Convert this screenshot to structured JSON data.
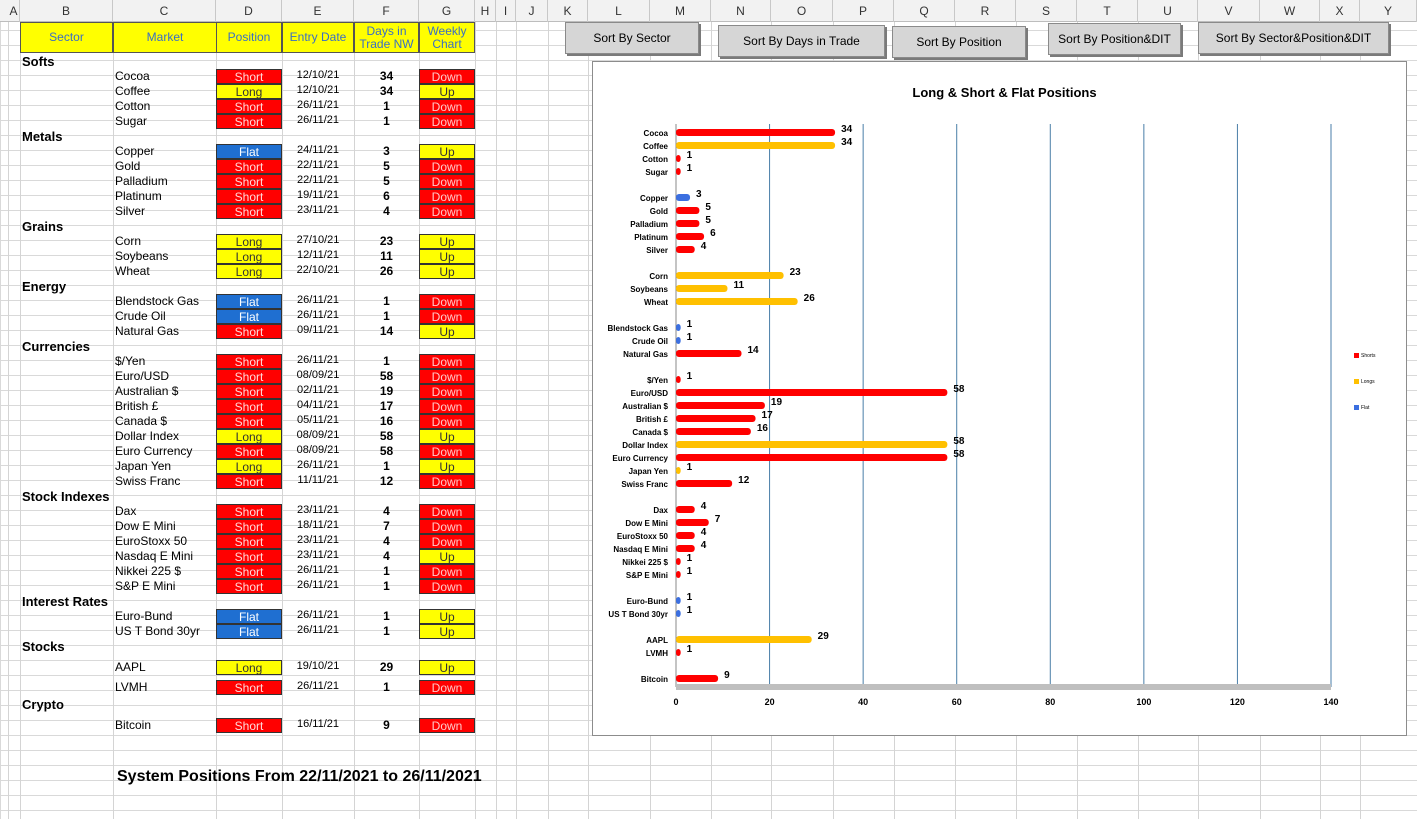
{
  "columns": [
    "A",
    "B",
    "C",
    "D",
    "E",
    "F",
    "G",
    "H",
    "I",
    "J",
    "K",
    "L",
    "M",
    "N",
    "O",
    "P",
    "Q",
    "R",
    "S",
    "T",
    "U",
    "V",
    "W",
    "X",
    "Y"
  ],
  "table_headers": {
    "sector": "Sector",
    "market": "Market",
    "position": "Position",
    "entry_date": "Entry Date",
    "days": "Days in Trade NW",
    "weekly": "Weekly Chart"
  },
  "groups": [
    {
      "sector": "Softs",
      "rows": [
        {
          "market": "Cocoa",
          "position": "Short",
          "date": "12/10/21",
          "days": "34",
          "weekly": "Down"
        },
        {
          "market": "Coffee",
          "position": "Long",
          "date": "12/10/21",
          "days": "34",
          "weekly": "Up"
        },
        {
          "market": "Cotton",
          "position": "Short",
          "date": "26/11/21",
          "days": "1",
          "weekly": "Down"
        },
        {
          "market": "Sugar",
          "position": "Short",
          "date": "26/11/21",
          "days": "1",
          "weekly": "Down"
        }
      ]
    },
    {
      "sector": "Metals",
      "rows": [
        {
          "market": "Copper",
          "position": "Flat",
          "date": "24/11/21",
          "days": "3",
          "weekly": "Up"
        },
        {
          "market": "Gold",
          "position": "Short",
          "date": "22/11/21",
          "days": "5",
          "weekly": "Down"
        },
        {
          "market": "Palladium",
          "position": "Short",
          "date": "22/11/21",
          "days": "5",
          "weekly": "Down"
        },
        {
          "market": "Platinum",
          "position": "Short",
          "date": "19/11/21",
          "days": "6",
          "weekly": "Down"
        },
        {
          "market": "Silver",
          "position": "Short",
          "date": "23/11/21",
          "days": "4",
          "weekly": "Down"
        }
      ]
    },
    {
      "sector": "Grains",
      "rows": [
        {
          "market": "Corn",
          "position": "Long",
          "date": "27/10/21",
          "days": "23",
          "weekly": "Up"
        },
        {
          "market": "Soybeans",
          "position": "Long",
          "date": "12/11/21",
          "days": "11",
          "weekly": "Up"
        },
        {
          "market": "Wheat",
          "position": "Long",
          "date": "22/10/21",
          "days": "26",
          "weekly": "Up"
        }
      ]
    },
    {
      "sector": "Energy",
      "rows": [
        {
          "market": "Blendstock Gas",
          "position": "Flat",
          "date": "26/11/21",
          "days": "1",
          "weekly": "Down"
        },
        {
          "market": "Crude Oil",
          "position": "Flat",
          "date": "26/11/21",
          "days": "1",
          "weekly": "Down"
        },
        {
          "market": "Natural Gas",
          "position": "Short",
          "date": "09/11/21",
          "days": "14",
          "weekly": "Up"
        }
      ]
    },
    {
      "sector": "Currencies",
      "rows": [
        {
          "market": "$/Yen",
          "position": "Short",
          "date": "26/11/21",
          "days": "1",
          "weekly": "Down"
        },
        {
          "market": "Euro/USD",
          "position": "Short",
          "date": "08/09/21",
          "days": "58",
          "weekly": "Down"
        },
        {
          "market": "Australian $",
          "position": "Short",
          "date": "02/11/21",
          "days": "19",
          "weekly": "Down"
        },
        {
          "market": "British £",
          "position": "Short",
          "date": "04/11/21",
          "days": "17",
          "weekly": "Down"
        },
        {
          "market": "Canada $",
          "position": "Short",
          "date": "05/11/21",
          "days": "16",
          "weekly": "Down"
        },
        {
          "market": "Dollar Index",
          "position": "Long",
          "date": "08/09/21",
          "days": "58",
          "weekly": "Up"
        },
        {
          "market": "Euro Currency",
          "position": "Short",
          "date": "08/09/21",
          "days": "58",
          "weekly": "Down"
        },
        {
          "market": "Japan Yen",
          "position": "Long",
          "date": "26/11/21",
          "days": "1",
          "weekly": "Up"
        },
        {
          "market": "Swiss Franc",
          "position": "Short",
          "date": "11/11/21",
          "days": "12",
          "weekly": "Down"
        }
      ]
    },
    {
      "sector": "Stock Indexes",
      "rows": [
        {
          "market": "Dax",
          "position": "Short",
          "date": "23/11/21",
          "days": "4",
          "weekly": "Down"
        },
        {
          "market": "Dow E Mini",
          "position": "Short",
          "date": "18/11/21",
          "days": "7",
          "weekly": "Down"
        },
        {
          "market": "EuroStoxx 50",
          "position": "Short",
          "date": "23/11/21",
          "days": "4",
          "weekly": "Down"
        },
        {
          "market": "Nasdaq E Mini",
          "position": "Short",
          "date": "23/11/21",
          "days": "4",
          "weekly": "Up"
        },
        {
          "market": "Nikkei 225 $",
          "position": "Short",
          "date": "26/11/21",
          "days": "1",
          "weekly": "Down"
        },
        {
          "market": "S&P E Mini",
          "position": "Short",
          "date": "26/11/21",
          "days": "1",
          "weekly": "Down"
        }
      ]
    },
    {
      "sector": "Interest Rates",
      "rows": [
        {
          "market": "Euro-Bund",
          "position": "Flat",
          "date": "26/11/21",
          "days": "1",
          "weekly": "Up"
        },
        {
          "market": "US T Bond 30yr",
          "position": "Flat",
          "date": "26/11/21",
          "days": "1",
          "weekly": "Up"
        }
      ]
    },
    {
      "sector": "Stocks",
      "rows": [
        {
          "market": "AAPL",
          "position": "Long",
          "date": "19/10/21",
          "days": "29",
          "weekly": "Up"
        },
        {
          "market": "LVMH",
          "position": "Short",
          "date": "26/11/21",
          "days": "1",
          "weekly": "Down"
        }
      ]
    },
    {
      "sector": "Crypto",
      "rows": [
        {
          "market": "Bitcoin",
          "position": "Short",
          "date": "16/11/21",
          "days": "9",
          "weekly": "Down"
        }
      ]
    }
  ],
  "footer": "System Positions From  22/11/2021  to 26/11/2021",
  "buttons": {
    "sort_sector": "Sort By Sector",
    "sort_days": "Sort By Days in Trade",
    "sort_position": "Sort By Position",
    "sort_position_dit": "Sort By Position&DIT",
    "sort_sector_position_dit": "Sort By Sector&Position&DIT"
  },
  "colors": {
    "short": "#ff0000",
    "long": "#ffc000",
    "flat": "#3b6fe0",
    "header_bg": "#ffff00",
    "header_text": "#3a6fc4",
    "flat_cell": "#1f6fd1"
  },
  "chart_data": {
    "type": "bar",
    "orientation": "horizontal",
    "title": "Long & Short & Flat Positions",
    "xlim": [
      0,
      140
    ],
    "xticks": [
      0,
      20,
      40,
      60,
      80,
      100,
      120,
      140
    ],
    "legend": [
      "Shorts",
      "Longs",
      "Flat"
    ],
    "legend_position": "right",
    "grid": "vertical",
    "groups": [
      [
        [
          "Cocoa",
          34,
          "Short"
        ],
        [
          "Coffee",
          34,
          "Long"
        ],
        [
          "Cotton",
          1,
          "Short"
        ],
        [
          "Sugar",
          1,
          "Short"
        ]
      ],
      [
        [
          "Copper",
          3,
          "Flat"
        ],
        [
          "Gold",
          5,
          "Short"
        ],
        [
          "Palladium",
          5,
          "Short"
        ],
        [
          "Platinum",
          6,
          "Short"
        ],
        [
          "Silver",
          4,
          "Short"
        ]
      ],
      [
        [
          "Corn",
          23,
          "Long"
        ],
        [
          "Soybeans",
          11,
          "Long"
        ],
        [
          "Wheat",
          26,
          "Long"
        ]
      ],
      [
        [
          "Blendstock Gas",
          1,
          "Flat"
        ],
        [
          "Crude Oil",
          1,
          "Flat"
        ],
        [
          "Natural Gas",
          14,
          "Short"
        ]
      ],
      [
        [
          "$/Yen",
          1,
          "Short"
        ],
        [
          "Euro/USD",
          58,
          "Short"
        ],
        [
          "Australian $",
          19,
          "Short"
        ],
        [
          "British £",
          17,
          "Short"
        ],
        [
          "Canada $",
          16,
          "Short"
        ],
        [
          "Dollar Index",
          58,
          "Long"
        ],
        [
          "Euro Currency",
          58,
          "Short"
        ],
        [
          "Japan Yen",
          1,
          "Long"
        ],
        [
          "Swiss Franc",
          12,
          "Short"
        ]
      ],
      [
        [
          "Dax",
          4,
          "Short"
        ],
        [
          "Dow E Mini",
          7,
          "Short"
        ],
        [
          "EuroStoxx 50",
          4,
          "Short"
        ],
        [
          "Nasdaq E Mini",
          4,
          "Short"
        ],
        [
          "Nikkei 225 $",
          1,
          "Short"
        ],
        [
          "S&P E Mini",
          1,
          "Short"
        ]
      ],
      [
        [
          "Euro-Bund",
          1,
          "Flat"
        ],
        [
          "US T Bond 30yr",
          1,
          "Flat"
        ]
      ],
      [
        [
          "AAPL",
          29,
          "Long"
        ],
        [
          "LVMH",
          1,
          "Short"
        ]
      ],
      [
        [
          "Bitcoin",
          9,
          "Short"
        ]
      ]
    ]
  }
}
